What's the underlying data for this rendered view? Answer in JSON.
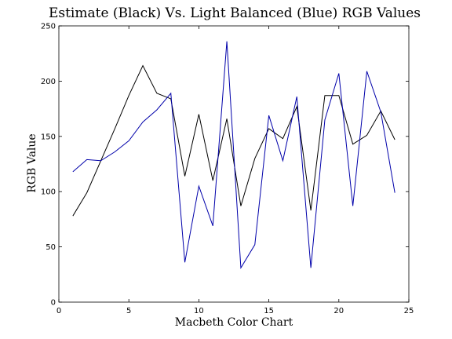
{
  "chart_data": {
    "type": "line",
    "title": "Estimate (Black) Vs. Light Balanced (Blue) RGB Values",
    "xlabel": "Macbeth Color Chart",
    "ylabel": "RGB Value",
    "xlim": [
      0,
      25
    ],
    "ylim": [
      0,
      250
    ],
    "xticks": [
      0,
      5,
      10,
      15,
      20,
      25
    ],
    "yticks": [
      0,
      50,
      100,
      150,
      200,
      250
    ],
    "grid": false,
    "x": [
      1,
      2,
      3,
      4,
      5,
      6,
      7,
      8,
      9,
      10,
      11,
      12,
      13,
      14,
      15,
      16,
      17,
      18,
      19,
      20,
      21,
      22,
      23,
      24
    ],
    "series": [
      {
        "color": "#000000",
        "values": [
          78,
          99,
          128,
          157,
          187,
          214,
          189,
          184,
          114,
          170,
          110,
          166,
          87,
          130,
          157,
          148,
          177,
          83,
          187,
          187,
          143,
          151,
          173,
          147
        ]
      },
      {
        "color": "#0000aa",
        "values": [
          118,
          129,
          128,
          136,
          146,
          163,
          174,
          189,
          36,
          105,
          69,
          236,
          31,
          52,
          169,
          128,
          186,
          31,
          165,
          207,
          87,
          209,
          172,
          99
        ]
      }
    ]
  }
}
